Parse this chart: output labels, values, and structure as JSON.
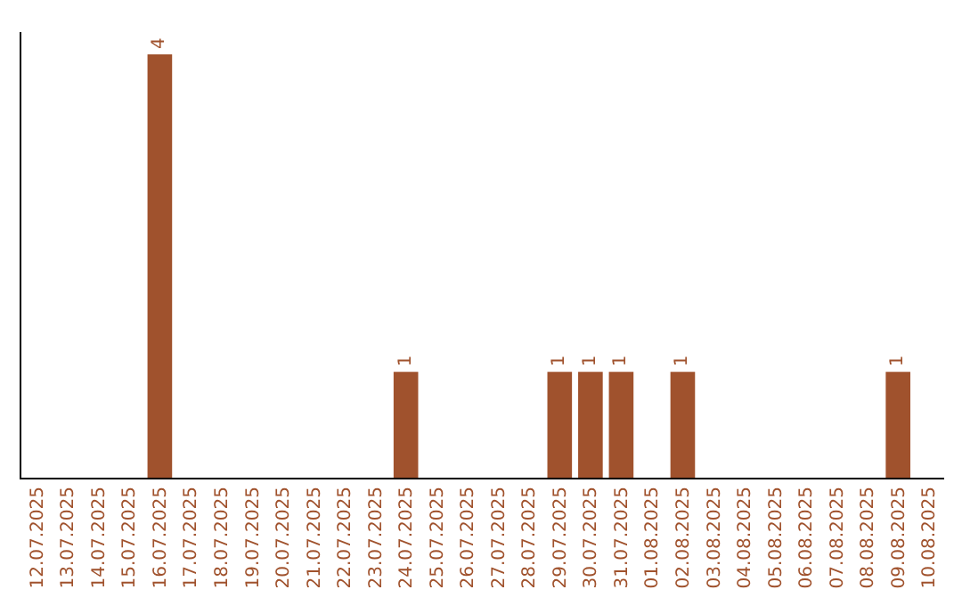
{
  "chart_data": {
    "type": "bar",
    "categories": [
      "12.07.2025",
      "13.07.2025",
      "14.07.2025",
      "15.07.2025",
      "16.07.2025",
      "17.07.2025",
      "18.07.2025",
      "19.07.2025",
      "20.07.2025",
      "21.07.2025",
      "22.07.2025",
      "23.07.2025",
      "24.07.2025",
      "25.07.2025",
      "26.07.2025",
      "27.07.2025",
      "28.07.2025",
      "29.07.2025",
      "30.07.2025",
      "31.07.2025",
      "01.08.2025",
      "02.08.2025",
      "03.08.2025",
      "04.08.2025",
      "05.08.2025",
      "06.08.2025",
      "07.08.2025",
      "08.08.2025",
      "09.08.2025",
      "10.08.2025"
    ],
    "values": [
      null,
      null,
      null,
      null,
      4,
      null,
      null,
      null,
      null,
      null,
      null,
      null,
      1,
      null,
      null,
      null,
      null,
      1,
      1,
      1,
      null,
      1,
      null,
      null,
      null,
      null,
      null,
      null,
      1,
      null
    ],
    "color": "#a0522d",
    "data_labels": true,
    "grid": false,
    "legend": false,
    "tick_labels": "x"
  }
}
